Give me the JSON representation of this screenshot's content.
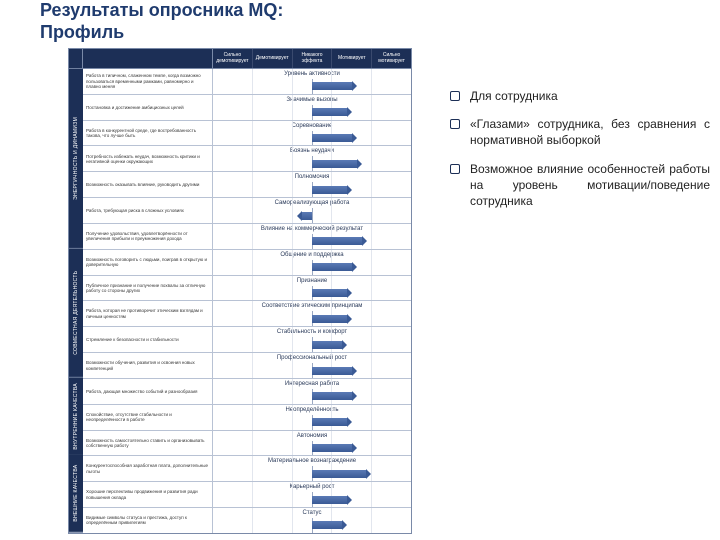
{
  "title_line1": "Результаты опросника MQ:",
  "title_line2": "Профиль",
  "header_columns": [
    "Сильно демотивирует",
    "Демотивирует",
    "Никакого эффекта",
    "Мотивирует",
    "Сильно мотивирует"
  ],
  "categories": [
    {
      "name": "ЭНЕРГИЧНОСТЬ И ДИНАМИЗМ",
      "span": 7
    },
    {
      "name": "СОВМЕСТНАЯ ДЕЯТЕЛЬНОСТЬ",
      "span": 5
    },
    {
      "name": "ВНУТРЕННИЕ КАЧЕСТВА",
      "span": 3
    },
    {
      "name": "ВНЕШНИЕ КАЧЕСТВА",
      "span": 3
    }
  ],
  "rows": [
    {
      "label": "Уровень активности",
      "desc": "Работа в типичном, слаженном темпе, когда возможно пользоваться временными рамками, равномерно и плавно меняя",
      "value": 0.4
    },
    {
      "label": "Значимые вызовы",
      "desc": "Постановка и достижение амбициозных целей",
      "value": 0.35
    },
    {
      "label": "Соревнование",
      "desc": "Работа в конкурентной среде, где востребованность такова, что лучше быть",
      "value": 0.4
    },
    {
      "label": "Боязнь неудачи",
      "desc": "Потребность избежать неудач, возможность критики и негативной оценки окружающих",
      "value": 0.45
    },
    {
      "label": "Полномочия",
      "desc": "Возможность оказывать влияние, руководить другими",
      "value": 0.35
    },
    {
      "label": "Самореализующая работа",
      "desc": "Работа, требующая риска в сложных условиях",
      "value": -0.1
    },
    {
      "label": "Влияние на коммерческий результат",
      "desc": "Получение удовольствия, удовлетворённости от увеличения прибыли и преумножения дохода",
      "value": 0.5
    },
    {
      "label": "Общение и поддержка",
      "desc": "Возможность поговорить с людьми, поиграв в открытую и доверительную",
      "value": 0.4
    },
    {
      "label": "Признание",
      "desc": "Публичное признание и получение похвалы за отличную работу со стороны других",
      "value": 0.35
    },
    {
      "label": "Соответствие этическим принципам",
      "desc": "Работа, которая не противоречит этическим взглядам и личным ценностям",
      "value": 0.35
    },
    {
      "label": "Стабильность и комфорт",
      "desc": "Стремление к безопасности и стабильности",
      "value": 0.3
    },
    {
      "label": "Профессиональный рост",
      "desc": "Возможности обучения, развития и освоения новых компетенций",
      "value": 0.4
    },
    {
      "label": "Интересная работа",
      "desc": "Работа, дающая множество событий и разнообразия",
      "value": 0.4
    },
    {
      "label": "Неопределённость",
      "desc": "Спокойствие, отсутствие стабильности и неопределённости в работе",
      "value": 0.35
    },
    {
      "label": "Автономия",
      "desc": "Возможность самостоятельно ставить и организовывать собственную работу",
      "value": 0.4
    },
    {
      "label": "Материальное вознаграждение",
      "desc": "Конкурентоспособная заработная плата, дополнительные льготы",
      "value": 0.55
    },
    {
      "label": "Карьерный рост",
      "desc": "Хорошие перспективы продвижения и развития ради повышения оклада",
      "value": 0.35
    },
    {
      "label": "Статус",
      "desc": "Видимые символы статуса и престижа, доступ к определённым привилегиям",
      "value": 0.3
    }
  ],
  "bullets": [
    "Для сотрудника",
    "«Глазами» сотрудника, без сравнения с нормативной выборкой",
    "Возможное влияние особенностей работы на уровень мотивации/поведение сотрудника"
  ],
  "colors": {
    "primary": "#1c2f56",
    "title": "#1f3b6e",
    "bar_top": "#5a7ab5",
    "bar_bottom": "#3a5a95",
    "border": "#7a8aa8",
    "grid": "#e2e6ee"
  }
}
